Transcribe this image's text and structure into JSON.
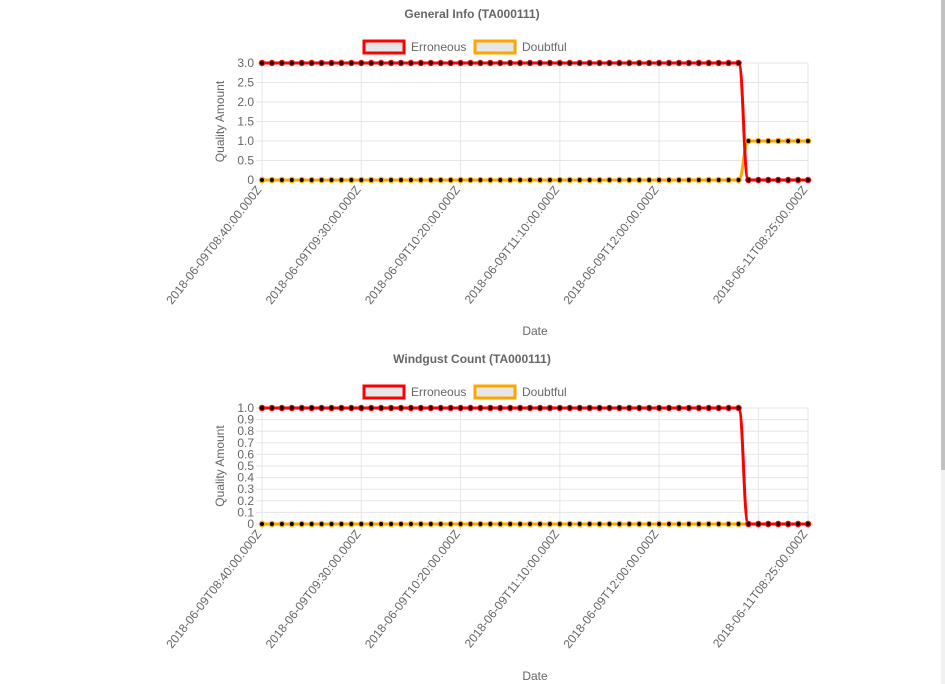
{
  "chart_data": [
    {
      "type": "line",
      "title": "General Info (TA000111)",
      "xlabel": "Date",
      "ylabel": "Quality Amount",
      "ylim": [
        0,
        3
      ],
      "yticks": [
        "0",
        "0.5",
        "1.0",
        "1.5",
        "2.0",
        "2.5",
        "3.0"
      ],
      "grid": true,
      "legend": "top-center",
      "xtick_labels": [
        "2018-06-09T08:40:00.000Z",
        "2018-06-09T09:30:00.000Z",
        "2018-06-09T10:20:00.000Z",
        "2018-06-09T11:10:00.000Z",
        "2018-06-09T12:00:00.000Z",
        "2018-06-11T08:25:00.000Z"
      ],
      "series": [
        {
          "name": "Erroneous",
          "color": "#ff0000",
          "values": [
            3,
            3,
            3,
            3,
            3,
            3,
            3,
            3,
            3,
            3,
            3,
            3,
            3,
            3,
            3,
            3,
            3,
            3,
            3,
            3,
            3,
            3,
            3,
            3,
            3,
            3,
            3,
            3,
            3,
            3,
            3,
            3,
            3,
            3,
            3,
            3,
            3,
            3,
            3,
            3,
            3,
            3,
            3,
            3,
            3,
            3,
            3,
            3,
            3,
            0,
            0,
            0,
            0,
            0,
            0,
            0
          ]
        },
        {
          "name": "Doubtful",
          "color": "#ffa500",
          "values": [
            0,
            0,
            0,
            0,
            0,
            0,
            0,
            0,
            0,
            0,
            0,
            0,
            0,
            0,
            0,
            0,
            0,
            0,
            0,
            0,
            0,
            0,
            0,
            0,
            0,
            0,
            0,
            0,
            0,
            0,
            0,
            0,
            0,
            0,
            0,
            0,
            0,
            0,
            0,
            0,
            0,
            0,
            0,
            0,
            0,
            0,
            0,
            0,
            0,
            1,
            1,
            1,
            1,
            1,
            1,
            1
          ]
        }
      ]
    },
    {
      "type": "line",
      "title": "Windgust Count (TA000111)",
      "xlabel": "Date",
      "ylabel": "Quality Amount",
      "ylim": [
        0,
        1
      ],
      "yticks": [
        "0",
        "0.1",
        "0.2",
        "0.3",
        "0.4",
        "0.5",
        "0.6",
        "0.7",
        "0.8",
        "0.9",
        "1.0"
      ],
      "grid": true,
      "legend": "top-center",
      "xtick_labels": [
        "2018-06-09T08:40:00.000Z",
        "2018-06-09T09:30:00.000Z",
        "2018-06-09T10:20:00.000Z",
        "2018-06-09T11:10:00.000Z",
        "2018-06-09T12:00:00.000Z",
        "2018-06-11T08:25:00.000Z"
      ],
      "series": [
        {
          "name": "Erroneous",
          "color": "#ff0000",
          "values": [
            1,
            1,
            1,
            1,
            1,
            1,
            1,
            1,
            1,
            1,
            1,
            1,
            1,
            1,
            1,
            1,
            1,
            1,
            1,
            1,
            1,
            1,
            1,
            1,
            1,
            1,
            1,
            1,
            1,
            1,
            1,
            1,
            1,
            1,
            1,
            1,
            1,
            1,
            1,
            1,
            1,
            1,
            1,
            1,
            1,
            1,
            1,
            1,
            1,
            0,
            0,
            0,
            0,
            0,
            0,
            0
          ]
        },
        {
          "name": "Doubtful",
          "color": "#ffa500",
          "values": [
            0,
            0,
            0,
            0,
            0,
            0,
            0,
            0,
            0,
            0,
            0,
            0,
            0,
            0,
            0,
            0,
            0,
            0,
            0,
            0,
            0,
            0,
            0,
            0,
            0,
            0,
            0,
            0,
            0,
            0,
            0,
            0,
            0,
            0,
            0,
            0,
            0,
            0,
            0,
            0,
            0,
            0,
            0,
            0,
            0,
            0,
            0,
            0,
            0,
            0,
            0,
            0,
            0,
            0,
            0,
            0
          ]
        }
      ]
    }
  ]
}
